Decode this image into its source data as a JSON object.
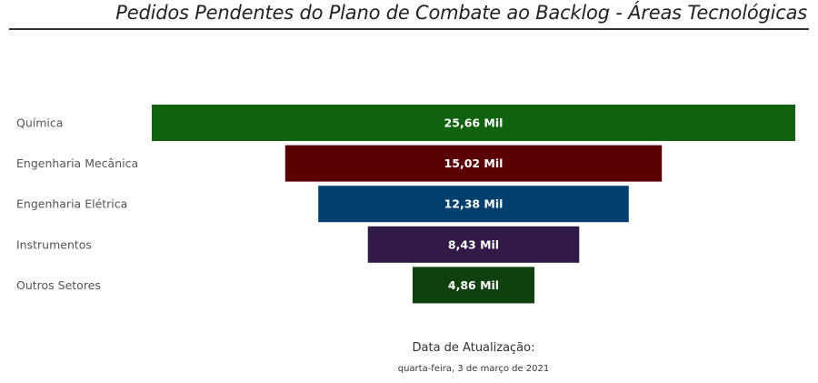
{
  "header": {
    "title": "Pedidos Pendentes do Plano de Combate ao Backlog - Áreas Tecnológicas"
  },
  "chart_data": {
    "type": "funnel",
    "unit": "Mil",
    "categories": [
      "Química",
      "Engenharia Mecânica",
      "Engenharia Elétrica",
      "Instrumentos",
      "Outros Setores"
    ],
    "values": [
      25.66,
      15.02,
      12.38,
      8.43,
      4.86
    ],
    "labels": [
      "25,66 Mil",
      "15,02 Mil",
      "12,38 Mil",
      "8,43 Mil",
      "4,86 Mil"
    ],
    "colors": [
      "#10620f",
      "#5a0004",
      "#003f6e",
      "#321a48",
      "#0f4010"
    ]
  },
  "footer": {
    "update_label": "Data de Atualização:",
    "update_date": "quarta-feira, 3 de março de 2021"
  }
}
